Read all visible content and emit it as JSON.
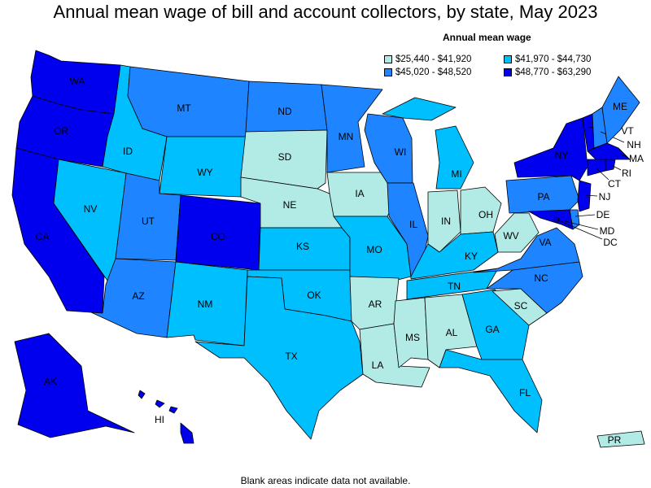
{
  "title": "Annual mean wage of bill and account collectors, by state, May 2023",
  "legend": {
    "title": "Annual mean wage",
    "bins": [
      {
        "label": "$25,440 - $41,920",
        "color": "#b2ebe6"
      },
      {
        "label": "$41,970 - $44,730",
        "color": "#00bfff"
      },
      {
        "label": "$45,020 - $48,520",
        "color": "#1e84ff"
      },
      {
        "label": "$48,770 - $63,290",
        "color": "#0000ee"
      }
    ]
  },
  "map_data": {
    "states": [
      {
        "abbr": "WA",
        "bin": 4
      },
      {
        "abbr": "OR",
        "bin": 4
      },
      {
        "abbr": "CA",
        "bin": 4
      },
      {
        "abbr": "NV",
        "bin": 2
      },
      {
        "abbr": "ID",
        "bin": 2
      },
      {
        "abbr": "MT",
        "bin": 3
      },
      {
        "abbr": "WY",
        "bin": 2
      },
      {
        "abbr": "UT",
        "bin": 3
      },
      {
        "abbr": "AZ",
        "bin": 3
      },
      {
        "abbr": "CO",
        "bin": 4
      },
      {
        "abbr": "NM",
        "bin": 2
      },
      {
        "abbr": "ND",
        "bin": 3
      },
      {
        "abbr": "SD",
        "bin": 1
      },
      {
        "abbr": "NE",
        "bin": 1
      },
      {
        "abbr": "KS",
        "bin": 2
      },
      {
        "abbr": "OK",
        "bin": 2
      },
      {
        "abbr": "TX",
        "bin": 2
      },
      {
        "abbr": "MN",
        "bin": 3
      },
      {
        "abbr": "IA",
        "bin": 1
      },
      {
        "abbr": "MO",
        "bin": 2
      },
      {
        "abbr": "AR",
        "bin": 1
      },
      {
        "abbr": "LA",
        "bin": 1
      },
      {
        "abbr": "WI",
        "bin": 3
      },
      {
        "abbr": "IL",
        "bin": 3
      },
      {
        "abbr": "MI",
        "bin": 2
      },
      {
        "abbr": "IN",
        "bin": 1
      },
      {
        "abbr": "OH",
        "bin": 1
      },
      {
        "abbr": "KY",
        "bin": 2
      },
      {
        "abbr": "TN",
        "bin": 2
      },
      {
        "abbr": "MS",
        "bin": 1
      },
      {
        "abbr": "AL",
        "bin": 1
      },
      {
        "abbr": "GA",
        "bin": 2
      },
      {
        "abbr": "FL",
        "bin": 2
      },
      {
        "abbr": "SC",
        "bin": 1
      },
      {
        "abbr": "NC",
        "bin": 3
      },
      {
        "abbr": "VA",
        "bin": 3
      },
      {
        "abbr": "WV",
        "bin": 1
      },
      {
        "abbr": "PA",
        "bin": 3
      },
      {
        "abbr": "NY",
        "bin": 4
      },
      {
        "abbr": "VT",
        "bin": 4
      },
      {
        "abbr": "NH",
        "bin": 3
      },
      {
        "abbr": "ME",
        "bin": 3
      },
      {
        "abbr": "MA",
        "bin": 4
      },
      {
        "abbr": "RI",
        "bin": 4
      },
      {
        "abbr": "CT",
        "bin": 4
      },
      {
        "abbr": "NJ",
        "bin": 4
      },
      {
        "abbr": "DE",
        "bin": 3
      },
      {
        "abbr": "MD",
        "bin": 4
      },
      {
        "abbr": "DC",
        "bin": 4
      },
      {
        "abbr": "AK",
        "bin": 4
      },
      {
        "abbr": "HI",
        "bin": 4
      },
      {
        "abbr": "PR",
        "bin": 1
      }
    ]
  },
  "footnote": "Blank areas indicate data not available."
}
